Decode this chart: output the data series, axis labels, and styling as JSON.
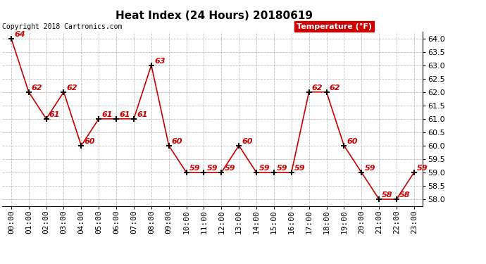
{
  "title": "Heat Index (24 Hours) 20180619",
  "copyright_text": "Copyright 2018 Cartronics.com",
  "legend_label": "Temperature (°F)",
  "hours": [
    0,
    1,
    2,
    3,
    4,
    5,
    6,
    7,
    8,
    9,
    10,
    11,
    12,
    13,
    14,
    15,
    16,
    17,
    18,
    19,
    20,
    21,
    22,
    23
  ],
  "x_labels": [
    "00:00",
    "01:00",
    "02:00",
    "03:00",
    "04:00",
    "05:00",
    "06:00",
    "07:00",
    "08:00",
    "09:00",
    "10:00",
    "11:00",
    "12:00",
    "13:00",
    "14:00",
    "15:00",
    "16:00",
    "17:00",
    "18:00",
    "19:00",
    "20:00",
    "21:00",
    "22:00",
    "23:00"
  ],
  "values": [
    64,
    62,
    61,
    62,
    60,
    61,
    61,
    61,
    63,
    60,
    59,
    59,
    59,
    60,
    59,
    59,
    59,
    62,
    62,
    60,
    59,
    58,
    58,
    59
  ],
  "ylim": [
    57.75,
    64.25
  ],
  "yticks": [
    58.0,
    58.5,
    59.0,
    59.5,
    60.0,
    60.5,
    61.0,
    61.5,
    62.0,
    62.5,
    63.0,
    63.5,
    64.0
  ],
  "line_color": "#cc0000",
  "marker_color": "#000000",
  "label_color": "#cc0000",
  "background_color": "#ffffff",
  "grid_color": "#b0b0b0",
  "legend_bg": "#cc0000",
  "legend_fg": "#ffffff",
  "title_fontsize": 11,
  "annotation_fontsize": 8,
  "tick_fontsize": 8,
  "copyright_fontsize": 7,
  "legend_fontsize": 8
}
